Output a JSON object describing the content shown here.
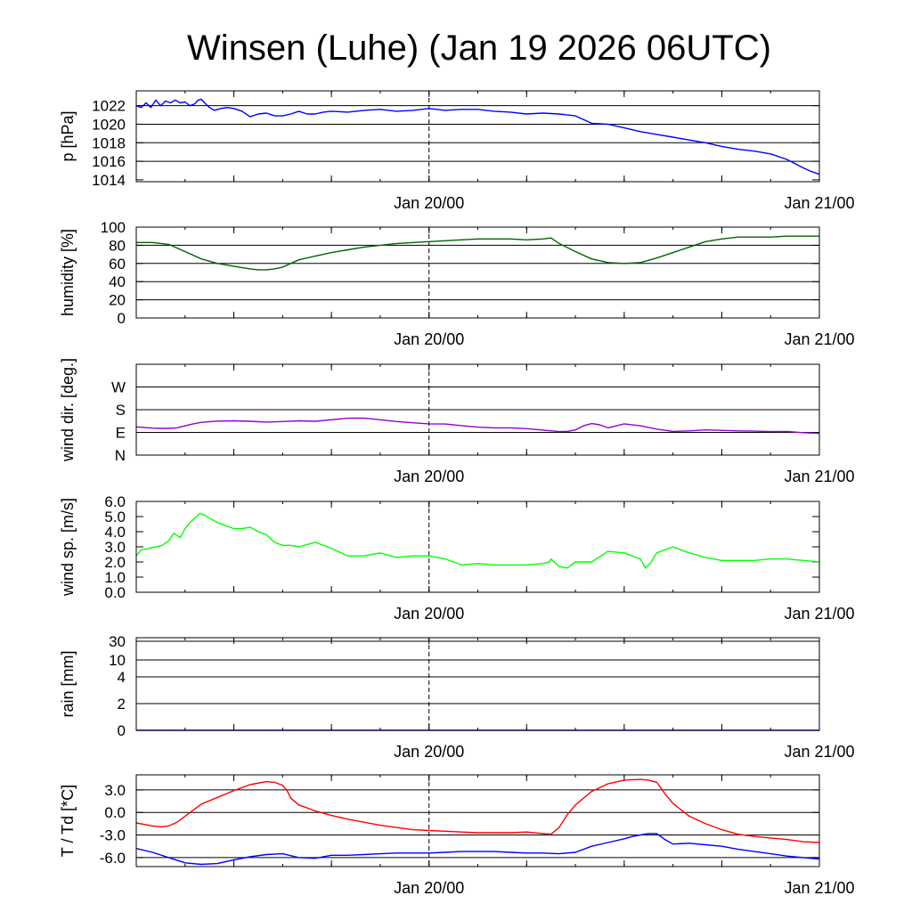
{
  "chart_data": {
    "title": "Winsen (Luhe) (Jan 19 2026 06UTC)",
    "x_range_hours": [
      0,
      42
    ],
    "x_ticks": [
      {
        "hour": 18,
        "label": "Jan 20/00"
      },
      {
        "hour": 42,
        "label": "Jan 21/00"
      }
    ],
    "panels": [
      {
        "id": "pressure",
        "type": "line",
        "ylabel": "p [hPa]",
        "ylim": [
          1013.8,
          1023.6
        ],
        "yticks": [
          1014,
          1016,
          1018,
          1020,
          1022
        ],
        "ytick_labels": [
          "1014",
          "1016",
          "1018",
          "1020",
          "1022"
        ],
        "grid": [
          1016,
          1018,
          1020,
          1022
        ],
        "series": [
          {
            "name": "pressure",
            "color": "#0000ff",
            "x": [
              0,
              0.3,
              0.6,
              0.9,
              1.2,
              1.5,
              1.8,
              2.1,
              2.4,
              2.7,
              3.0,
              3.3,
              3.6,
              3.8,
              4.0,
              4.2,
              4.5,
              4.8,
              5.2,
              5.6,
              6.0,
              6.5,
              7.0,
              7.5,
              8.0,
              8.5,
              9.0,
              9.5,
              10.0,
              10.5,
              11.0,
              11.5,
              12.0,
              13.0,
              14.0,
              15.0,
              16.0,
              17.0,
              18.0,
              19.0,
              20.0,
              21.0,
              22.0,
              23.0,
              24.0,
              25.0,
              26.0,
              27.0,
              28.0,
              29.0,
              30.0,
              31.0,
              32.0,
              33.0,
              34.0,
              35.0,
              36.0,
              37.0,
              38.0,
              39.0,
              40.0,
              41.0,
              41.5,
              42.0
            ],
            "y": [
              1022.0,
              1021.8,
              1022.3,
              1021.8,
              1022.6,
              1022.0,
              1022.5,
              1022.3,
              1022.6,
              1022.3,
              1022.4,
              1022.0,
              1022.2,
              1022.6,
              1022.7,
              1022.3,
              1021.8,
              1021.5,
              1021.7,
              1021.8,
              1021.7,
              1021.4,
              1020.8,
              1021.1,
              1021.2,
              1020.9,
              1020.9,
              1021.1,
              1021.4,
              1021.1,
              1021.1,
              1021.3,
              1021.4,
              1021.3,
              1021.5,
              1021.6,
              1021.4,
              1021.5,
              1021.7,
              1021.5,
              1021.6,
              1021.6,
              1021.4,
              1021.3,
              1021.1,
              1021.2,
              1021.1,
              1020.9,
              1020.1,
              1020.0,
              1019.6,
              1019.2,
              1018.9,
              1018.6,
              1018.3,
              1018.0,
              1017.6,
              1017.3,
              1017.1,
              1016.8,
              1016.2,
              1015.3,
              1014.9,
              1014.6
            ]
          }
        ]
      },
      {
        "id": "humidity",
        "type": "line",
        "ylabel": "humidity [%]",
        "ylim": [
          0,
          100
        ],
        "yticks": [
          0,
          20,
          40,
          60,
          80,
          100
        ],
        "ytick_labels": [
          "0",
          "20",
          "40",
          "60",
          "80",
          "100"
        ],
        "grid": [
          20,
          40,
          60,
          80
        ],
        "series": [
          {
            "name": "humidity",
            "color": "#006400",
            "x": [
              0,
              1,
              2,
              3,
              4,
              5,
              6,
              7,
              7.5,
              8,
              8.5,
              9,
              10,
              11,
              12,
              13,
              14,
              15,
              16,
              17,
              18,
              19,
              20,
              21,
              22,
              23,
              24,
              25,
              25.5,
              26,
              27,
              28,
              29,
              30,
              31,
              32,
              33,
              34,
              35,
              36,
              37,
              38,
              39,
              40,
              41,
              42
            ],
            "y": [
              83,
              83,
              81,
              73,
              65,
              60,
              57,
              54,
              53,
              53,
              54,
              56,
              64,
              68,
              72,
              75,
              78,
              80,
              82,
              83,
              84,
              85,
              86,
              87,
              87,
              87,
              86,
              87,
              88,
              82,
              73,
              65,
              61,
              60,
              61,
              66,
              72,
              78,
              84,
              87,
              89,
              89,
              89,
              90,
              90,
              90
            ]
          }
        ]
      },
      {
        "id": "wind_dir",
        "type": "line",
        "ylabel": "wind dir. [deg.]",
        "ylim": [
          0,
          360
        ],
        "yticks": [
          0,
          90,
          180,
          270
        ],
        "ytick_labels": [
          "N",
          "E",
          "S",
          "W"
        ],
        "grid": [
          90,
          180,
          270
        ],
        "series": [
          {
            "name": "wind direction",
            "color": "#9400d3",
            "x": [
              0,
              1,
              1.5,
              2,
              2.5,
              3,
              3.5,
              4,
              5,
              6,
              7,
              8,
              9,
              10,
              11,
              12,
              13,
              14,
              15,
              16,
              17,
              18,
              19,
              20,
              21,
              22,
              23,
              24,
              25,
              26,
              26.5,
              27,
              27.5,
              28,
              28.5,
              29,
              30,
              31,
              32,
              33,
              34,
              35,
              36,
              37,
              38,
              39,
              40,
              41,
              42
            ],
            "y": [
              112,
              107,
              106,
              106,
              108,
              116,
              124,
              130,
              135,
              136,
              134,
              131,
              133,
              136,
              134,
              140,
              146,
              147,
              140,
              133,
              128,
              124,
              123,
              117,
              111,
              108,
              108,
              105,
              99,
              93,
              94,
              100,
              116,
              125,
              120,
              108,
              124,
              116,
              103,
              94,
              96,
              100,
              98,
              96,
              95,
              93,
              94,
              89,
              86
            ]
          }
        ]
      },
      {
        "id": "wind_speed",
        "type": "line",
        "ylabel": "wind sp. [m/s]",
        "ylim": [
          0,
          6
        ],
        "yticks": [
          0,
          1,
          2,
          3,
          4,
          5,
          6
        ],
        "ytick_labels": [
          "0.0",
          "1.0",
          "2.0",
          "3.0",
          "4.0",
          "5.0",
          "6.0"
        ],
        "grid": [],
        "series": [
          {
            "name": "wind speed",
            "color": "#00ff00",
            "x": [
              0,
              0.3,
              0.8,
              1.2,
              1.6,
              2.0,
              2.3,
              2.7,
              3.0,
              3.3,
              3.6,
              3.9,
              4.2,
              4.5,
              5.0,
              5.5,
              6.0,
              6.5,
              7.0,
              7.5,
              8.0,
              8.5,
              9.0,
              9.5,
              10.0,
              11.0,
              12.0,
              13.0,
              14.0,
              15.0,
              16.0,
              17.0,
              18.0,
              19.0,
              20.0,
              21.0,
              22.0,
              23.0,
              24.0,
              25.0,
              25.4,
              25.5,
              26.0,
              26.5,
              27.0,
              28.0,
              29.0,
              30.0,
              31.0,
              31.3,
              31.6,
              32.0,
              33.0,
              34.0,
              35.0,
              36.0,
              37.0,
              38.0,
              39.0,
              40.0,
              41.0,
              42.0
            ],
            "y": [
              2.4,
              2.8,
              2.9,
              3.0,
              3.1,
              3.4,
              3.9,
              3.6,
              4.2,
              4.6,
              4.9,
              5.2,
              5.1,
              4.9,
              4.6,
              4.4,
              4.2,
              4.2,
              4.3,
              4.0,
              3.8,
              3.3,
              3.1,
              3.1,
              3.0,
              3.3,
              2.9,
              2.4,
              2.4,
              2.6,
              2.3,
              2.4,
              2.4,
              2.2,
              1.8,
              1.9,
              1.8,
              1.8,
              1.8,
              1.9,
              2.0,
              2.2,
              1.7,
              1.6,
              2.0,
              2.0,
              2.7,
              2.6,
              2.2,
              1.6,
              1.9,
              2.6,
              3.0,
              2.6,
              2.3,
              2.1,
              2.1,
              2.1,
              2.2,
              2.2,
              2.1,
              2.0
            ]
          }
        ]
      },
      {
        "id": "rain",
        "type": "line",
        "ylabel": "rain [mm]",
        "scale": "nonlinear",
        "ylim": [
          0,
          30
        ],
        "yticks": [
          0,
          2,
          4,
          10,
          30
        ],
        "ytick_labels": [
          "0",
          "2",
          "4",
          "10",
          "30"
        ],
        "grid": [
          2,
          4,
          10,
          30
        ],
        "series": [
          {
            "name": "rain",
            "color": "#0000ff",
            "x": [
              0,
              42
            ],
            "y": [
              0,
              0
            ]
          }
        ]
      },
      {
        "id": "temperature",
        "type": "line",
        "ylabel": "T / Td [*C]",
        "ylim": [
          -7.2,
          5.0
        ],
        "yticks": [
          -6,
          -3,
          0,
          3
        ],
        "ytick_labels": [
          "-6.0",
          "-3.0",
          "0.0",
          "3.0"
        ],
        "grid": [
          -6,
          -3,
          0,
          3
        ],
        "series": [
          {
            "name": "T",
            "color": "#ff0000",
            "x": [
              0,
              0.5,
              1.0,
              1.5,
              2.0,
              2.5,
              3.0,
              3.5,
              4.0,
              5.0,
              6.0,
              7.0,
              8.0,
              8.5,
              9.0,
              9.3,
              9.5,
              10.0,
              11.0,
              12.0,
              13.0,
              14.0,
              15.0,
              16.0,
              17.0,
              18.0,
              19.0,
              20.0,
              21.0,
              22.0,
              23.0,
              24.0,
              25.0,
              25.5,
              26.0,
              26.5,
              27.0,
              28.0,
              29.0,
              30.0,
              31.0,
              31.5,
              32.0,
              32.5,
              33.0,
              34.0,
              35.0,
              36.0,
              37.0,
              38.0,
              39.0,
              40.0,
              41.0,
              42.0
            ],
            "y": [
              -1.4,
              -1.6,
              -1.8,
              -1.9,
              -1.8,
              -1.3,
              -0.5,
              0.3,
              1.1,
              2.0,
              2.9,
              3.7,
              4.1,
              4.0,
              3.6,
              2.8,
              1.9,
              1.0,
              0.2,
              -0.4,
              -0.9,
              -1.3,
              -1.7,
              -2.0,
              -2.3,
              -2.4,
              -2.5,
              -2.6,
              -2.7,
              -2.7,
              -2.7,
              -2.6,
              -2.8,
              -2.9,
              -2.0,
              -0.3,
              1.0,
              2.8,
              3.8,
              4.3,
              4.4,
              4.3,
              4.0,
              2.5,
              1.2,
              -0.5,
              -1.5,
              -2.3,
              -2.9,
              -3.2,
              -3.4,
              -3.6,
              -3.9,
              -4.0
            ]
          },
          {
            "name": "Td",
            "color": "#0000ff",
            "x": [
              0,
              1,
              2,
              3,
              4,
              5,
              6,
              7,
              8,
              9,
              10,
              11,
              12,
              13,
              14,
              15,
              16,
              17,
              18,
              19,
              20,
              21,
              22,
              23,
              24,
              25,
              26,
              27,
              28,
              29,
              30,
              30.5,
              31,
              31.5,
              32,
              32.5,
              33,
              34,
              35,
              36,
              37,
              38,
              39,
              40,
              41,
              42
            ],
            "y": [
              -4.8,
              -5.3,
              -6.0,
              -6.7,
              -6.9,
              -6.8,
              -6.3,
              -5.9,
              -5.6,
              -5.5,
              -6.0,
              -6.1,
              -5.7,
              -5.7,
              -5.6,
              -5.5,
              -5.4,
              -5.4,
              -5.4,
              -5.3,
              -5.2,
              -5.2,
              -5.2,
              -5.3,
              -5.4,
              -5.4,
              -5.5,
              -5.3,
              -4.5,
              -4.0,
              -3.5,
              -3.2,
              -3.0,
              -2.8,
              -2.8,
              -3.6,
              -4.2,
              -4.1,
              -4.3,
              -4.5,
              -4.9,
              -5.2,
              -5.5,
              -5.8,
              -6.0,
              -6.2
            ]
          }
        ]
      }
    ]
  }
}
